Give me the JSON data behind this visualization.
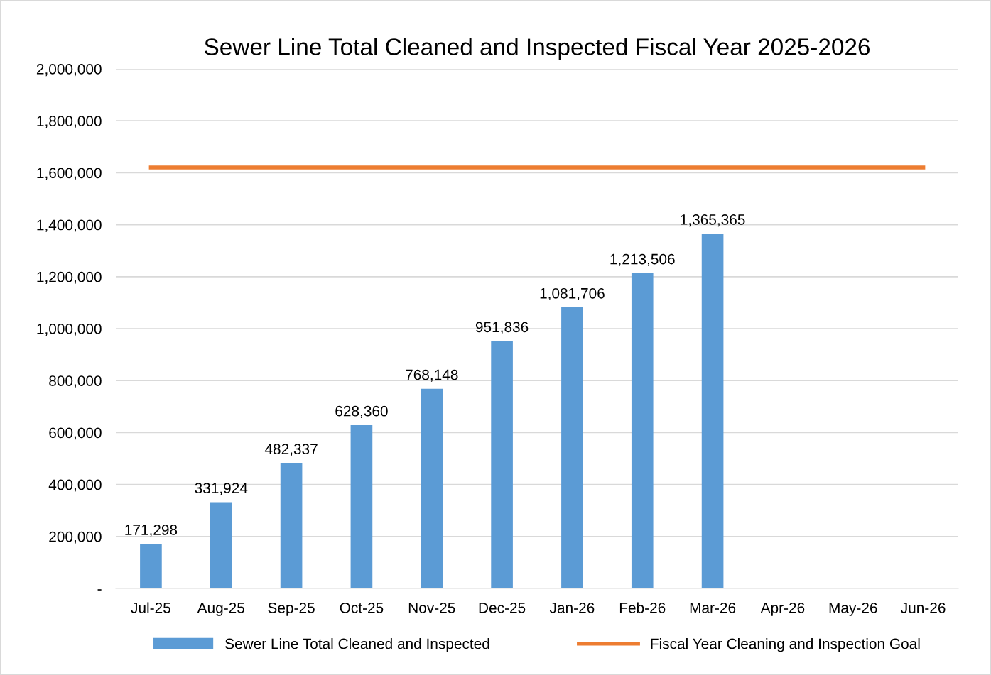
{
  "chart_data": {
    "type": "bar",
    "title": "Sewer Line Total Cleaned and Inspected Fiscal Year 2025-2026",
    "categories": [
      "Jul-25",
      "Aug-25",
      "Sep-25",
      "Oct-25",
      "Nov-25",
      "Dec-25",
      "Jan-26",
      "Feb-26",
      "Mar-26",
      "Apr-26",
      "May-26",
      "Jun-26"
    ],
    "series": [
      {
        "name": "Sewer Line Total Cleaned and Inspected",
        "color": "#5b9bd5",
        "values": [
          171298,
          331924,
          482337,
          628360,
          768148,
          951836,
          1081706,
          1213506,
          1365365,
          null,
          null,
          null
        ],
        "value_labels": [
          "171,298",
          "331,924",
          "482,337",
          "628,360",
          "768,148",
          "951,836",
          "1,081,706",
          "1,213,506",
          "1,365,365",
          null,
          null,
          null
        ]
      },
      {
        "name": "Fiscal Year Cleaning and Inspection Goal",
        "type": "line",
        "color": "#ed7d31",
        "values": [
          1620000,
          1620000,
          1620000,
          1620000,
          1620000,
          1620000,
          1620000,
          1620000,
          1620000,
          1620000,
          1620000,
          1620000
        ]
      }
    ],
    "ylim": [
      0,
      2000000
    ],
    "yticks": [
      {
        "value": 0,
        "label": "-"
      },
      {
        "value": 200000,
        "label": "200,000"
      },
      {
        "value": 400000,
        "label": "400,000"
      },
      {
        "value": 600000,
        "label": "600,000"
      },
      {
        "value": 800000,
        "label": "800,000"
      },
      {
        "value": 1000000,
        "label": "1,000,000"
      },
      {
        "value": 1200000,
        "label": "1,200,000"
      },
      {
        "value": 1400000,
        "label": "1,400,000"
      },
      {
        "value": 1600000,
        "label": "1,600,000"
      },
      {
        "value": 1800000,
        "label": "1,800,000"
      },
      {
        "value": 2000000,
        "label": "2,000,000"
      }
    ],
    "grid": "y",
    "legend": "bottom",
    "marker": "none",
    "line_style": "solid"
  }
}
